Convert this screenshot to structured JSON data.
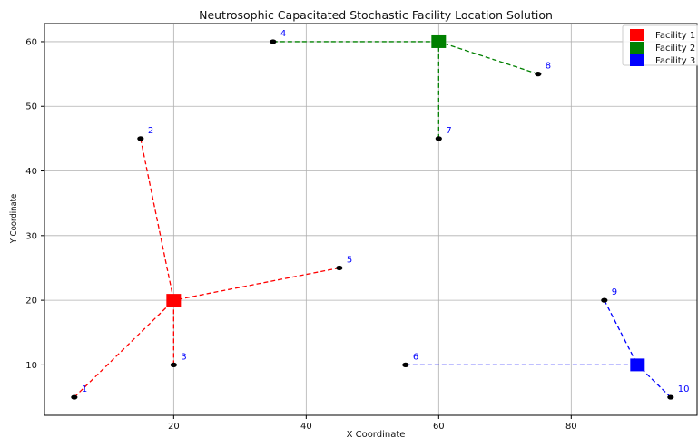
{
  "chart_data": {
    "type": "scatter",
    "title": "Neutrosophic Capacitated Stochastic Facility Location Solution",
    "xlabel": "X Coordinate",
    "ylabel": "Y Coordinate",
    "xlim": [
      0.5,
      99
    ],
    "ylim": [
      2.2,
      62.8
    ],
    "xticks": [
      20,
      40,
      60,
      80
    ],
    "yticks": [
      10,
      20,
      30,
      40,
      50,
      60
    ],
    "grid": true,
    "legend_position": "top-right",
    "facilities": [
      {
        "name": "Facility 1",
        "x": 20,
        "y": 20,
        "color": "#ff0000"
      },
      {
        "name": "Facility 2",
        "x": 60,
        "y": 60,
        "color": "#008000"
      },
      {
        "name": "Facility 3",
        "x": 90,
        "y": 10,
        "color": "#0000ff"
      }
    ],
    "customers": [
      {
        "label": "1",
        "x": 5,
        "y": 5,
        "facility": 0
      },
      {
        "label": "2",
        "x": 15,
        "y": 45,
        "facility": 0
      },
      {
        "label": "3",
        "x": 20,
        "y": 10,
        "facility": 0
      },
      {
        "label": "4",
        "x": 35,
        "y": 60,
        "facility": 1
      },
      {
        "label": "5",
        "x": 45,
        "y": 25,
        "facility": 0
      },
      {
        "label": "6",
        "x": 55,
        "y": 10,
        "facility": 2
      },
      {
        "label": "7",
        "x": 60,
        "y": 45,
        "facility": 1
      },
      {
        "label": "8",
        "x": 75,
        "y": 55,
        "facility": 1
      },
      {
        "label": "9",
        "x": 85,
        "y": 20,
        "facility": 2
      },
      {
        "label": "10",
        "x": 95,
        "y": 5,
        "facility": 2
      }
    ],
    "customer_label_color": "#0000ff",
    "customer_marker_color": "#000000"
  }
}
